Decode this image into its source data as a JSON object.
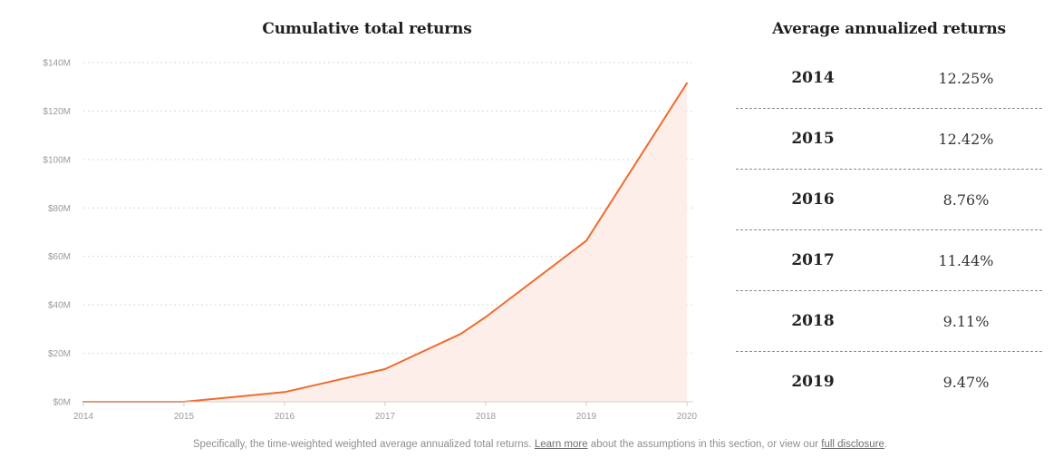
{
  "chart_data": {
    "type": "area",
    "title": "Cumulative total returns",
    "xlabel": "",
    "ylabel": "",
    "x": [
      2014,
      2015,
      2016,
      2017,
      2017.75,
      2018,
      2019,
      2020
    ],
    "series": [
      {
        "values": [
          0,
          0,
          4,
          13.5,
          28,
          35,
          66.5,
          131.5
        ]
      }
    ],
    "x_ticks": [
      "2014",
      "2015",
      "2016",
      "2017",
      "2018",
      "2019",
      "2020"
    ],
    "y_ticks": [
      "$0M",
      "$20M",
      "$40M",
      "$60M",
      "$80M",
      "$100M",
      "$120M",
      "$140M"
    ],
    "xlim": [
      2014,
      2020
    ],
    "ylim": [
      0,
      140
    ],
    "grid": true,
    "line_color": "#ef6b2c",
    "fill_color": "#fdeee9"
  },
  "table": {
    "title": "Average annualized returns",
    "rows": [
      {
        "year": "2014",
        "value": "12.25%"
      },
      {
        "year": "2015",
        "value": "12.42%"
      },
      {
        "year": "2016",
        "value": "8.76%"
      },
      {
        "year": "2017",
        "value": "11.44%"
      },
      {
        "year": "2018",
        "value": "9.11%"
      },
      {
        "year": "2019",
        "value": "9.47%"
      }
    ]
  },
  "footnote": {
    "text_before": "Specifically, the time-weighted weighted average annualized total returns. ",
    "link1": "Learn more",
    "text_middle": " about the assumptions in this section, or view our ",
    "link2": "full disclosure",
    "text_after": "."
  }
}
